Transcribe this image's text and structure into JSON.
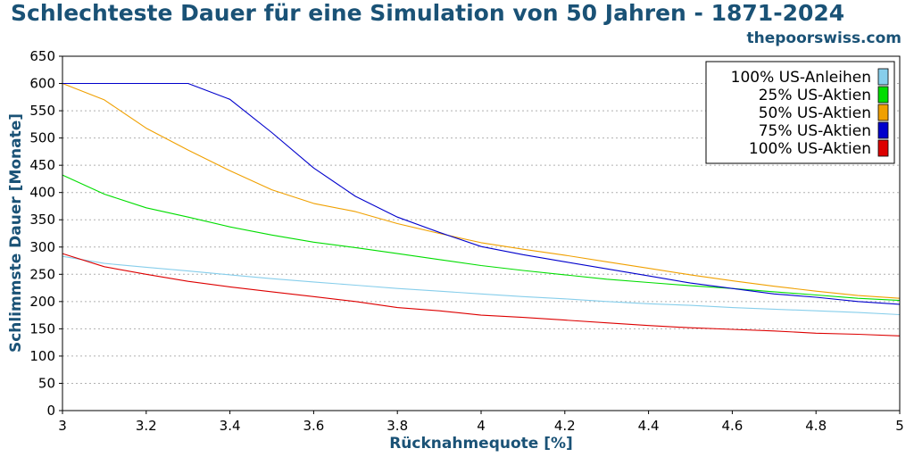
{
  "title": "Schlechteste Dauer für eine Simulation von 50 Jahren - 1871-2024",
  "subtitle": "thepoorswiss.com",
  "chart_data": {
    "type": "line",
    "title": "Schlechteste Dauer für eine Simulation von 50 Jahren - 1871-2024",
    "xlabel": "Rücknahmequote [%]",
    "ylabel": "Schlimmste Dauer [Monate]",
    "xlim": [
      3,
      5
    ],
    "ylim": [
      0,
      650
    ],
    "xticks": [
      3,
      3.2,
      3.4,
      3.6,
      3.8,
      4,
      4.2,
      4.4,
      4.6,
      4.8,
      5
    ],
    "xtick_labels": [
      "3",
      "3.2",
      "3.4",
      "3.6",
      "3.8",
      "4",
      "4.2",
      "4.4",
      "4.6",
      "4.8",
      "5"
    ],
    "yticks": [
      0,
      50,
      100,
      150,
      200,
      250,
      300,
      350,
      400,
      450,
      500,
      550,
      600,
      650
    ],
    "grid": "horizontal dotted",
    "legend_position": "top-right",
    "x": [
      3.0,
      3.1,
      3.2,
      3.3,
      3.4,
      3.5,
      3.6,
      3.7,
      3.8,
      3.9,
      4.0,
      4.1,
      4.2,
      4.3,
      4.4,
      4.5,
      4.6,
      4.7,
      4.8,
      4.9,
      5.0
    ],
    "series": [
      {
        "name": "100% US-Anleihen",
        "color": "#87ceeb",
        "values": [
          283,
          270,
          263,
          256,
          249,
          242,
          236,
          230,
          224,
          219,
          214,
          209,
          205,
          200,
          196,
          193,
          189,
          186,
          183,
          180,
          176
        ]
      },
      {
        "name": "25% US-Aktien",
        "color": "#00dd00",
        "values": [
          432,
          397,
          372,
          355,
          337,
          322,
          309,
          299,
          288,
          277,
          266,
          257,
          249,
          241,
          235,
          229,
          224,
          218,
          212,
          206,
          202
        ]
      },
      {
        "name": "50% US-Aktien",
        "color": "#f0a000",
        "values": [
          600,
          570,
          518,
          478,
          440,
          405,
          380,
          365,
          343,
          325,
          308,
          296,
          285,
          273,
          261,
          249,
          238,
          228,
          219,
          211,
          206
        ]
      },
      {
        "name": "75% US-Aktien",
        "color": "#0000cc",
        "values": [
          600,
          600,
          600,
          600,
          571,
          510,
          445,
          393,
          355,
          327,
          301,
          286,
          273,
          260,
          247,
          234,
          224,
          214,
          208,
          200,
          195
        ]
      },
      {
        "name": "100% US-Aktien",
        "color": "#dd0000",
        "values": [
          288,
          264,
          250,
          237,
          227,
          218,
          209,
          200,
          189,
          183,
          175,
          171,
          166,
          161,
          156,
          152,
          149,
          146,
          142,
          140,
          137
        ]
      }
    ]
  }
}
